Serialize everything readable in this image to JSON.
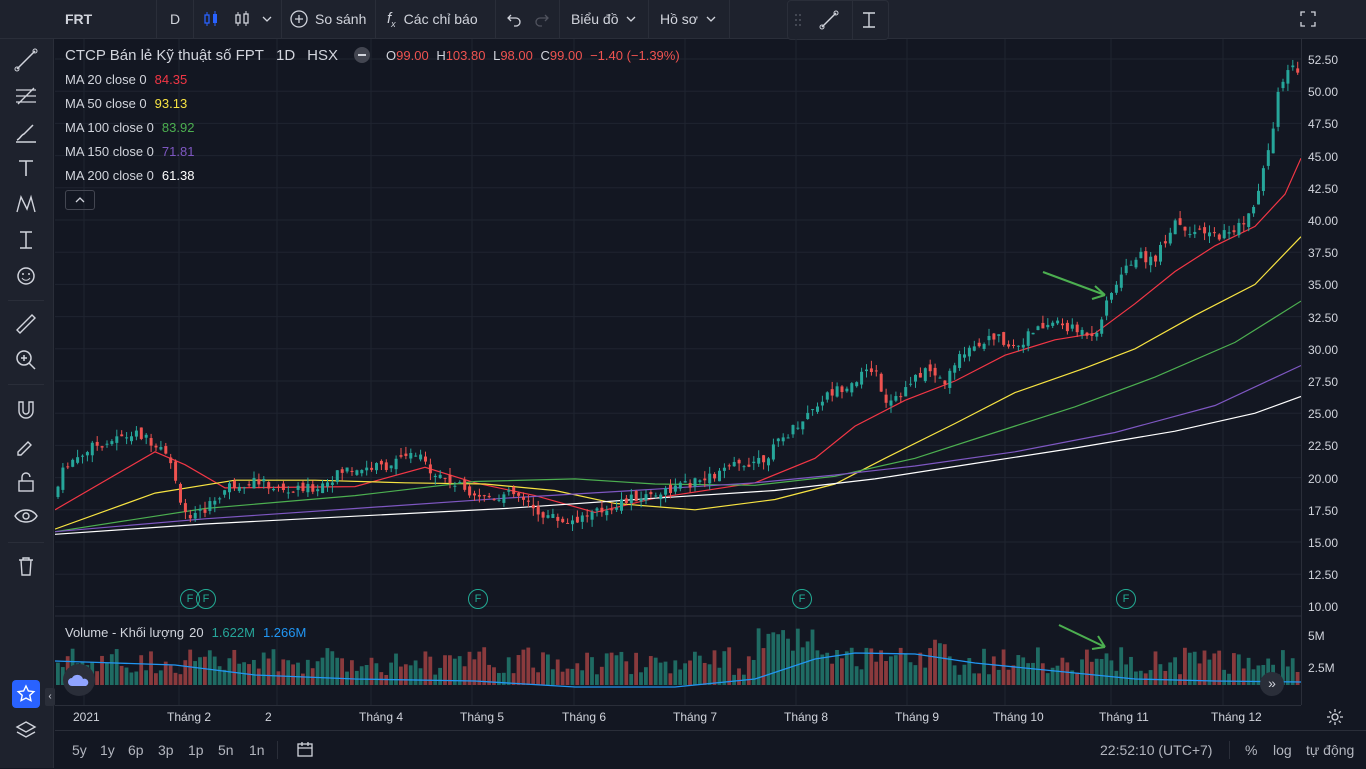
{
  "toolbar": {
    "symbol": "FRT",
    "interval": "D",
    "compare_label": "So sánh",
    "indicators_label": "Các chỉ báo",
    "chart_label": "Biểu đồ",
    "profile_label": "Hồ sơ"
  },
  "legend": {
    "title": "CTCP Bán lẻ Kỹ thuật số FPT",
    "interval": "1D",
    "exchange": "HSX",
    "o_label": "O",
    "o_value": "99.00",
    "h_label": "H",
    "h_value": "103.80",
    "l_label": "L",
    "l_value": "98.00",
    "c_label": "C",
    "c_value": "99.00",
    "change": "−1.40 (−1.39%)",
    "ma": [
      {
        "label": "MA 20 close 0",
        "value": "84.35",
        "color": "#f23645"
      },
      {
        "label": "MA 50 close 0",
        "value": "93.13",
        "color": "#f7e342"
      },
      {
        "label": "MA 100 close 0",
        "value": "83.92",
        "color": "#4caf50"
      },
      {
        "label": "MA 150 close 0",
        "value": "71.81",
        "color": "#7e57c2"
      },
      {
        "label": "MA 200 close 0",
        "value": "61.38",
        "color": "#ffffff"
      }
    ]
  },
  "volume_legend": {
    "title": "Volume - Khối lượng",
    "period": "20",
    "value1": "1.622M",
    "value2": "1.266M"
  },
  "price_axis": [
    "52.50",
    "50.00",
    "47.50",
    "45.00",
    "42.50",
    "40.00",
    "37.50",
    "35.00",
    "32.50",
    "30.00",
    "27.50",
    "25.00",
    "22.50",
    "20.00",
    "17.50",
    "15.00",
    "12.50",
    "10.00"
  ],
  "volume_axis": [
    "5M",
    "2.5M"
  ],
  "time_axis": [
    "2021",
    "Tháng 2",
    "2",
    "Tháng 4",
    "Tháng 5",
    "Tháng 6",
    "Tháng 7",
    "Tháng 8",
    "Tháng 9",
    "Tháng 10",
    "Tháng 11",
    "Tháng 12"
  ],
  "earnings_marker": "F",
  "bottom": {
    "ranges": [
      "5y",
      "1y",
      "6p",
      "3p",
      "1p",
      "5n",
      "1n"
    ],
    "clock": "22:52:10 (UTC+7)",
    "percent": "%",
    "log": "log",
    "auto": "tự động"
  },
  "colors": {
    "up": "#26a69a",
    "down": "#ef5350",
    "accent": "#2962ff"
  }
}
